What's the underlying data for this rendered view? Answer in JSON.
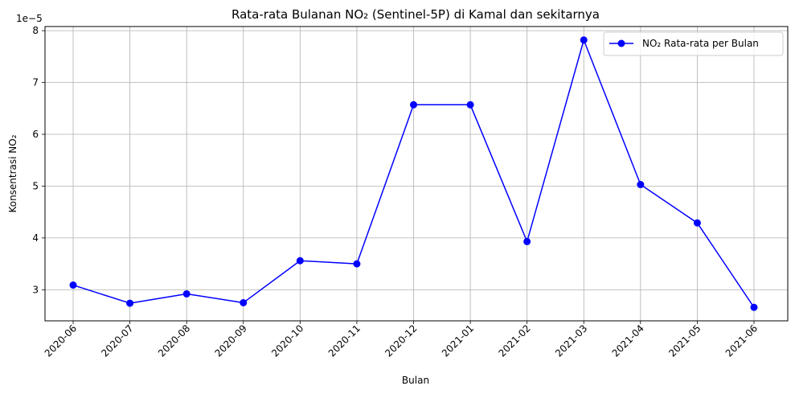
{
  "chart_data": {
    "type": "line",
    "title": "Rata-rata Bulanan NO₂ (Sentinel-5P) di Kamal dan sekitarnya",
    "xlabel": "Bulan",
    "ylabel": "Konsentrasi NO₂",
    "y_offset_label": "1e−5",
    "y_scale_factor": 1e-05,
    "categories": [
      "2020-06",
      "2020-07",
      "2020-08",
      "2020-09",
      "2020-10",
      "2020-11",
      "2020-12",
      "2021-01",
      "2021-02",
      "2021-03",
      "2021-04",
      "2021-05",
      "2021-06"
    ],
    "series": [
      {
        "name": "NO₂ Rata-rata per Bulan",
        "color": "#0000ff",
        "marker": "circle",
        "values": [
          3.09e-05,
          2.74e-05,
          2.92e-05,
          2.75e-05,
          3.56e-05,
          3.5e-05,
          6.57e-05,
          6.57e-05,
          3.93e-05,
          7.82e-05,
          5.03e-05,
          4.29e-05,
          2.66e-05
        ]
      }
    ],
    "yticks": [
      3,
      4,
      5,
      6,
      7,
      8
    ],
    "ylim": [
      2.4e-05,
      8.08e-05
    ],
    "grid": true,
    "legend_position": "top-right"
  }
}
